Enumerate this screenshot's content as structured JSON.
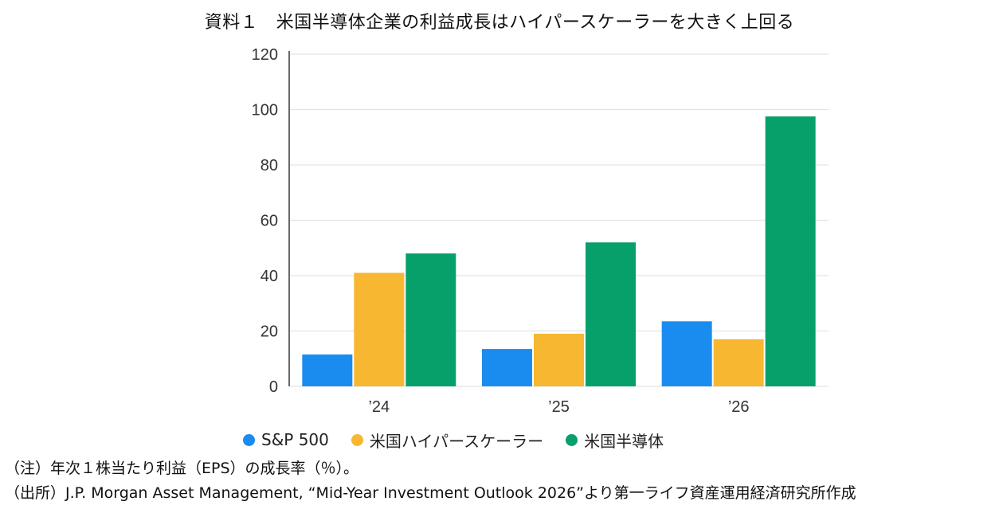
{
  "title": "資料１　米国半導体企業の利益成長はハイパースケーラーを大きく上回る",
  "note": "（注）年次１株当たり利益（EPS）の成長率（％）。",
  "source": "（出所）J.P. Morgan Asset Management, “Mid-Year Investment Outlook 2026”より第一ライフ資産運用経済研究所作成",
  "chart_data": {
    "type": "bar",
    "categories": [
      "’24",
      "’25",
      "’26"
    ],
    "series": [
      {
        "name": "S&P 500",
        "color": "#1a8cf0",
        "values": [
          11.5,
          13.5,
          23.5
        ]
      },
      {
        "name": "米国ハイパースケーラー",
        "color": "#f7b731",
        "values": [
          41,
          19,
          17
        ]
      },
      {
        "name": "米国半導体",
        "color": "#07a06a",
        "values": [
          48,
          52,
          97.5
        ]
      }
    ],
    "yticks": [
      0,
      20,
      40,
      60,
      80,
      100,
      120
    ],
    "ylim": [
      0,
      120
    ],
    "grid": true,
    "legend_position": "bottom-left"
  }
}
